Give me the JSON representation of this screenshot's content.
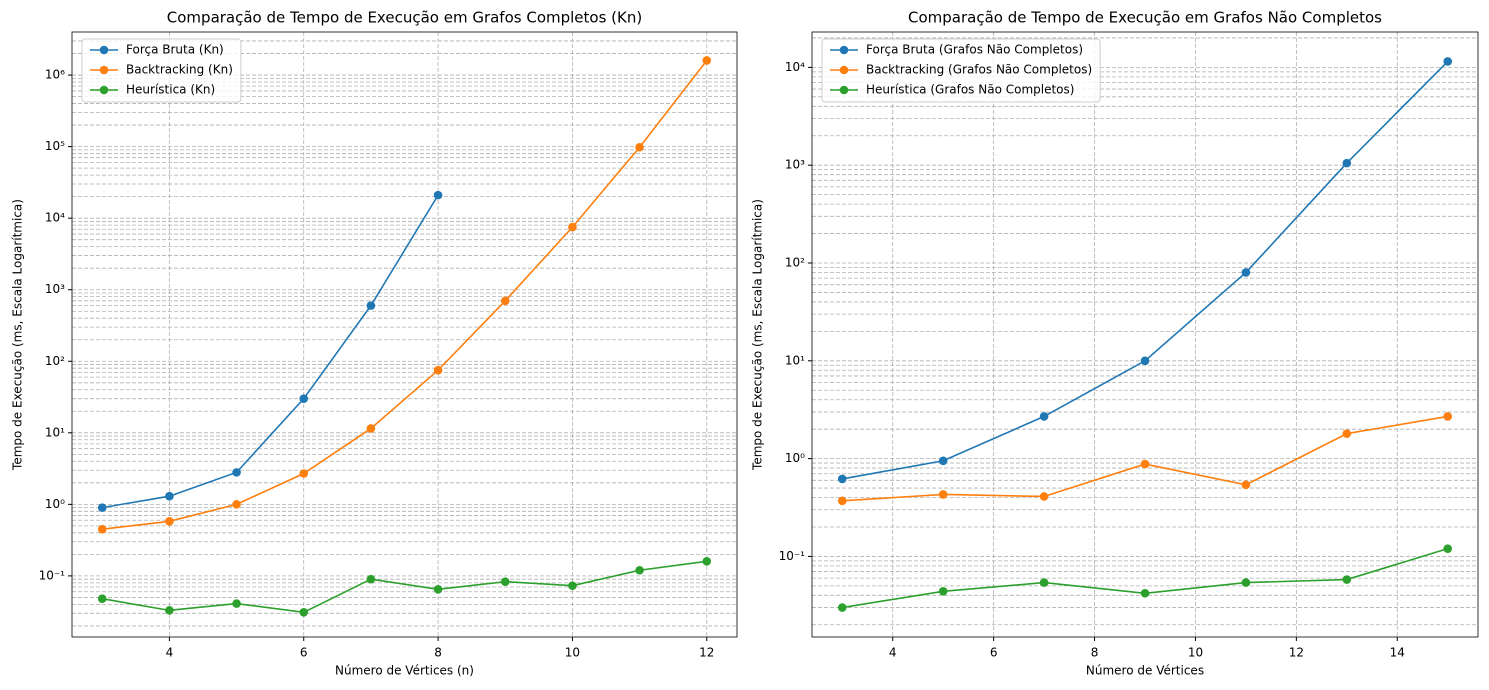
{
  "chart_data": [
    {
      "type": "line",
      "title": "Comparação de Tempo de Execução em Grafos Completos (Kn)",
      "x_label": "Número de Vértices (n)",
      "y_label": "Tempo de Execução (ms, Escala Logarítmica)",
      "y_scale": "log",
      "grid": true,
      "legend": "upper left",
      "xlim": [
        2.55,
        12.45
      ],
      "xticks": [
        4,
        6,
        8,
        10,
        12
      ],
      "ylim": [
        0.014,
        4000000
      ],
      "yticks": [
        {
          "value": 0.1,
          "label": "10⁻¹"
        },
        {
          "value": 1,
          "label": "10⁰"
        },
        {
          "value": 10,
          "label": "10¹"
        },
        {
          "value": 100,
          "label": "10²"
        },
        {
          "value": 1000,
          "label": "10³"
        },
        {
          "value": 10000,
          "label": "10⁴"
        },
        {
          "value": 100000,
          "label": "10⁵"
        },
        {
          "value": 1000000,
          "label": "10⁶"
        }
      ],
      "series": [
        {
          "name": "Força Bruta (Kn)",
          "color": "#1f77b4",
          "x": [
            3,
            4,
            5,
            6,
            7,
            8
          ],
          "values": [
            0.9,
            1.3,
            2.8,
            30,
            600,
            21000
          ]
        },
        {
          "name": "Backtracking (Kn)",
          "color": "#ff7f0e",
          "x": [
            3,
            4,
            5,
            6,
            7,
            8,
            9,
            10,
            11,
            12
          ],
          "values": [
            0.45,
            0.58,
            1.0,
            2.7,
            11.5,
            75,
            700,
            7500,
            98000,
            1600000
          ]
        },
        {
          "name": "Heurística (Kn)",
          "color": "#2ca02c",
          "x": [
            3,
            4,
            5,
            6,
            7,
            8,
            9,
            10,
            11,
            12
          ],
          "values": [
            0.048,
            0.033,
            0.041,
            0.031,
            0.09,
            0.065,
            0.083,
            0.073,
            0.12,
            0.16
          ]
        }
      ]
    },
    {
      "type": "line",
      "title": "Comparação de Tempo de Execução em Grafos Não Completos",
      "x_label": "Número de Vértices",
      "y_label": "Tempo de Execução (ms, Escala Logarítmica)",
      "y_scale": "log",
      "grid": true,
      "legend": "upper left",
      "xlim": [
        2.4,
        15.6
      ],
      "xticks": [
        4,
        6,
        8,
        10,
        12,
        14
      ],
      "ylim": [
        0.015,
        23000
      ],
      "yticks": [
        {
          "value": 0.1,
          "label": "10⁻¹"
        },
        {
          "value": 1,
          "label": "10⁰"
        },
        {
          "value": 10,
          "label": "10¹"
        },
        {
          "value": 100,
          "label": "10²"
        },
        {
          "value": 1000,
          "label": "10³"
        },
        {
          "value": 10000,
          "label": "10⁴"
        }
      ],
      "series": [
        {
          "name": "Força Bruta (Grafos Não Completos)",
          "color": "#1f77b4",
          "x": [
            3,
            5,
            7,
            9,
            11,
            13,
            15
          ],
          "values": [
            0.62,
            0.95,
            2.7,
            10,
            80,
            1050,
            11500
          ]
        },
        {
          "name": "Backtracking (Grafos Não Completos)",
          "color": "#ff7f0e",
          "x": [
            3,
            5,
            7,
            9,
            11,
            13,
            15
          ],
          "values": [
            0.37,
            0.43,
            0.41,
            0.88,
            0.54,
            1.8,
            2.7
          ]
        },
        {
          "name": "Heurística (Grafos Não Completos)",
          "color": "#2ca02c",
          "x": [
            3,
            5,
            7,
            9,
            11,
            13,
            15
          ],
          "values": [
            0.03,
            0.044,
            0.054,
            0.042,
            0.054,
            0.058,
            0.12
          ]
        }
      ]
    }
  ]
}
